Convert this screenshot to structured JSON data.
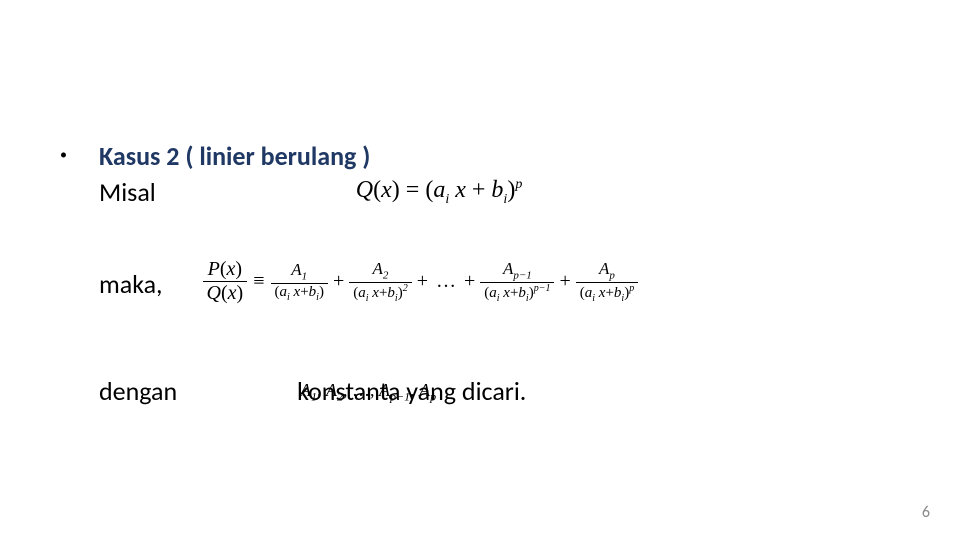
{
  "colors": {
    "heading": "#1f3864",
    "body": "#000000",
    "page_num": "#8a8a8a",
    "background": "#ffffff"
  },
  "fonts": {
    "body_family": "Calibri",
    "math_family": "Times New Roman",
    "heading_size_pt": 20,
    "body_size_pt": 20,
    "math_size_pt": 18
  },
  "bullet": "•",
  "heading": "Kasus 2 ( linier berulang )",
  "misal": "Misal",
  "maka": "maka,",
  "dengan": "dengan",
  "konstanta": "konstanta yang dicari.",
  "page_number": "6",
  "formula_qx": {
    "lhs": "Q(x)",
    "rhs_base": "a_i x + b_i",
    "rhs_exp": "p"
  },
  "formula_pq": {
    "lhs_num": "P(x)",
    "lhs_den": "Q(x)",
    "terms": [
      {
        "coef": "A",
        "coef_sub": "1",
        "den_base": "a_i x + b_i",
        "den_exp": ""
      },
      {
        "coef": "A",
        "coef_sub": "2",
        "den_base": "a_i x + b_i",
        "den_exp": "2"
      },
      {
        "coef": "A",
        "coef_sub": "p−1",
        "den_base": "a_i x + b_i",
        "den_exp": "p−1"
      },
      {
        "coef": "A",
        "coef_sub": "p",
        "den_base": "a_i x + b_i",
        "den_exp": "p"
      }
    ]
  },
  "a_list": "A_1, A_2, …, A_{p−1}, A_p"
}
